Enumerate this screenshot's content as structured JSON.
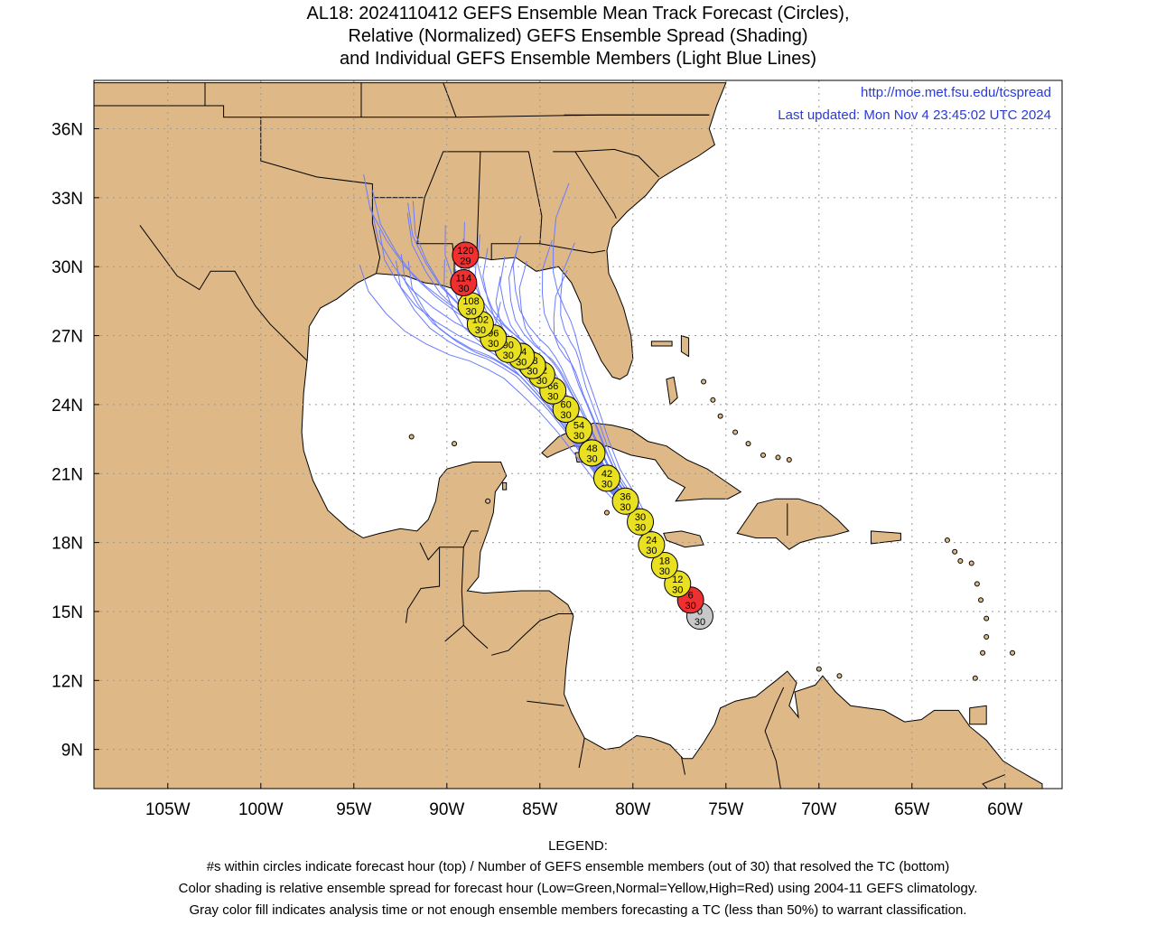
{
  "title": {
    "line1": "AL18: 2024110412 GEFS Ensemble Mean Track Forecast (Circles),",
    "line2": "Relative (Normalized) GEFS Ensemble Spread (Shading)",
    "line3": "and Individual GEFS Ensemble Members (Light Blue Lines)"
  },
  "credit": {
    "url": "http://moe.met.fsu.edu/tcspread",
    "updated": "Last updated: Mon Nov 4 23:45:02 UTC 2024"
  },
  "axes": {
    "lat_labels": [
      "36N",
      "33N",
      "30N",
      "27N",
      "24N",
      "21N",
      "18N",
      "15N",
      "12N",
      "9N"
    ],
    "lat_values": [
      36,
      33,
      30,
      27,
      24,
      21,
      18,
      15,
      12,
      9
    ],
    "lon_labels": [
      "105W",
      "100W",
      "95W",
      "90W",
      "85W",
      "80W",
      "75W",
      "70W",
      "65W",
      "60W"
    ],
    "lon_values": [
      -105,
      -100,
      -95,
      -90,
      -85,
      -80,
      -75,
      -70,
      -65,
      -60
    ]
  },
  "colors": {
    "land": "#deb887",
    "ocean": "#ffffff",
    "member_tracks": "#6a7cff",
    "low_spread": "#00c000",
    "normal_spread": "#e8e020",
    "high_spread": "#f03030",
    "analysis": "#c8c8c8"
  },
  "chart_data": {
    "type": "map-track",
    "track_points": [
      {
        "hour": "0",
        "members": "30",
        "lon": -76.4,
        "lat": 14.8,
        "shade": "gray"
      },
      {
        "hour": "6",
        "members": "30",
        "lon": -76.9,
        "lat": 15.5,
        "shade": "red"
      },
      {
        "hour": "12",
        "members": "30",
        "lon": -77.6,
        "lat": 16.2,
        "shade": "yellow"
      },
      {
        "hour": "18",
        "members": "30",
        "lon": -78.3,
        "lat": 17.0,
        "shade": "yellow"
      },
      {
        "hour": "24",
        "members": "30",
        "lon": -79.0,
        "lat": 17.9,
        "shade": "yellow"
      },
      {
        "hour": "30",
        "members": "30",
        "lon": -79.6,
        "lat": 18.9,
        "shade": "yellow"
      },
      {
        "hour": "36",
        "members": "30",
        "lon": -80.4,
        "lat": 19.8,
        "shade": "yellow"
      },
      {
        "hour": "42",
        "members": "30",
        "lon": -81.4,
        "lat": 20.8,
        "shade": "yellow"
      },
      {
        "hour": "48",
        "members": "30",
        "lon": -82.2,
        "lat": 21.9,
        "shade": "yellow"
      },
      {
        "hour": "54",
        "members": "30",
        "lon": -82.9,
        "lat": 22.9,
        "shade": "yellow"
      },
      {
        "hour": "60",
        "members": "30",
        "lon": -83.6,
        "lat": 23.8,
        "shade": "yellow"
      },
      {
        "hour": "66",
        "members": "30",
        "lon": -84.3,
        "lat": 24.6,
        "shade": "yellow"
      },
      {
        "hour": "72",
        "members": "30",
        "lon": -84.9,
        "lat": 25.3,
        "shade": "yellow"
      },
      {
        "hour": "78",
        "members": "30",
        "lon": -85.4,
        "lat": 25.7,
        "shade": "yellow"
      },
      {
        "hour": "84",
        "members": "30",
        "lon": -86.0,
        "lat": 26.1,
        "shade": "yellow"
      },
      {
        "hour": "90",
        "members": "30",
        "lon": -86.7,
        "lat": 26.4,
        "shade": "yellow"
      },
      {
        "hour": "96",
        "members": "30",
        "lon": -87.5,
        "lat": 26.9,
        "shade": "yellow"
      },
      {
        "hour": "102",
        "members": "30",
        "lon": -88.2,
        "lat": 27.5,
        "shade": "yellow"
      },
      {
        "hour": "108",
        "members": "30",
        "lon": -88.7,
        "lat": 28.3,
        "shade": "yellow"
      },
      {
        "hour": "114",
        "members": "30",
        "lon": -89.1,
        "lat": 29.3,
        "shade": "red"
      },
      {
        "hour": "120",
        "members": "29",
        "lon": -89.0,
        "lat": 30.5,
        "shade": "red"
      }
    ]
  },
  "legend": {
    "heading": "LEGEND:",
    "line1": "#s within circles indicate forecast hour (top) / Number of GEFS ensemble members (out of 30) that resolved the TC (bottom)",
    "line2": "Color shading is relative ensemble spread for forecast hour (Low=Green,Normal=Yellow,High=Red) using 2004-11 GEFS climatology.",
    "line3": "Gray color fill indicates analysis time or not enough ensemble members forecasting a TC (less than 50%) to warrant classification."
  }
}
